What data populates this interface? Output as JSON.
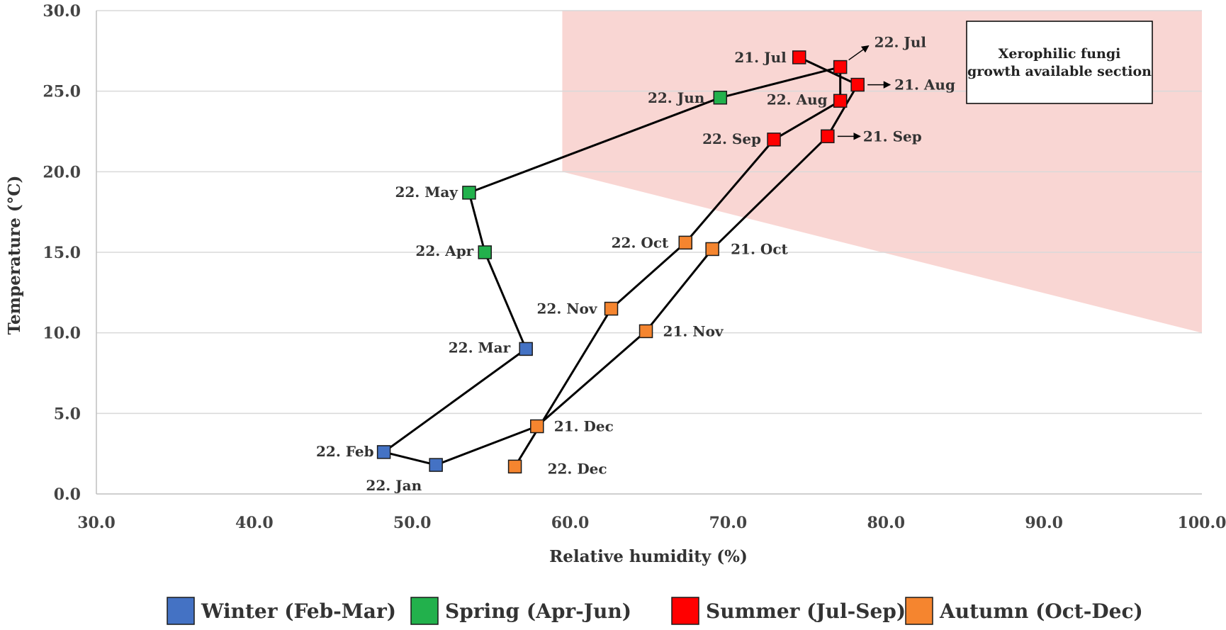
{
  "chart_data": {
    "type": "scatter",
    "xlabel": "Relative humidity (%)",
    "ylabel": "Temperature (°C)",
    "xlim": [
      30,
      100
    ],
    "ylim": [
      0,
      30
    ],
    "x_ticks": [
      "30.0",
      "40.0",
      "50.0",
      "60.0",
      "70.0",
      "80.0",
      "90.0",
      "100.0"
    ],
    "y_ticks": [
      "0.0",
      "5.0",
      "10.0",
      "15.0",
      "20.0",
      "25.0",
      "30.0"
    ],
    "grid": "horizontal",
    "legend_position": "bottom",
    "connected": true,
    "region": {
      "label": "Xerophilic fungi growth available section",
      "label_lines": [
        "Xerophilic fungi",
        "growth available section"
      ],
      "color": "#f9d6d3",
      "polygon": [
        [
          59.5,
          30
        ],
        [
          100,
          30
        ],
        [
          100,
          10
        ],
        [
          59.5,
          20
        ]
      ]
    },
    "seasons": [
      {
        "name": "Winter (Feb-Mar)",
        "color": "#4472c4"
      },
      {
        "name": "Spring (Apr-Jun)",
        "color": "#22b14c"
      },
      {
        "name": "Summer (Jul-Sep)",
        "color": "#ff0000"
      },
      {
        "name": "Autumn (Oct-Dec)",
        "color": "#f5852f"
      }
    ],
    "points": [
      {
        "label": "21. Jul",
        "x": 74.5,
        "y": 27.1,
        "season": 2
      },
      {
        "label": "21. Aug",
        "x": 78.2,
        "y": 25.4,
        "season": 2
      },
      {
        "label": "21. Sep",
        "x": 76.3,
        "y": 22.2,
        "season": 2
      },
      {
        "label": "21. Oct",
        "x": 69.0,
        "y": 15.2,
        "season": 3
      },
      {
        "label": "21. Nov",
        "x": 64.8,
        "y": 10.1,
        "season": 3
      },
      {
        "label": "21. Dec",
        "x": 57.9,
        "y": 4.2,
        "season": 3
      },
      {
        "label": "22. Jan",
        "x": 51.5,
        "y": 1.8,
        "season": 0
      },
      {
        "label": "22. Feb",
        "x": 48.2,
        "y": 2.6,
        "season": 0
      },
      {
        "label": "22. Mar",
        "x": 57.2,
        "y": 9.0,
        "season": 0
      },
      {
        "label": "22. Apr",
        "x": 54.6,
        "y": 15.0,
        "season": 1
      },
      {
        "label": "22. May",
        "x": 53.6,
        "y": 18.7,
        "season": 1
      },
      {
        "label": "22. Jun",
        "x": 69.5,
        "y": 24.6,
        "season": 1
      },
      {
        "label": "22. Jul",
        "x": 77.1,
        "y": 26.5,
        "season": 2
      },
      {
        "label": "22. Aug",
        "x": 77.1,
        "y": 24.4,
        "season": 2
      },
      {
        "label": "22. Sep",
        "x": 72.9,
        "y": 22.0,
        "season": 2
      },
      {
        "label": "22. Oct",
        "x": 67.3,
        "y": 15.6,
        "season": 3
      },
      {
        "label": "22. Nov",
        "x": 62.6,
        "y": 11.5,
        "season": 3
      },
      {
        "label": "22. Dec",
        "x": 56.5,
        "y": 1.7,
        "season": 3
      }
    ]
  }
}
